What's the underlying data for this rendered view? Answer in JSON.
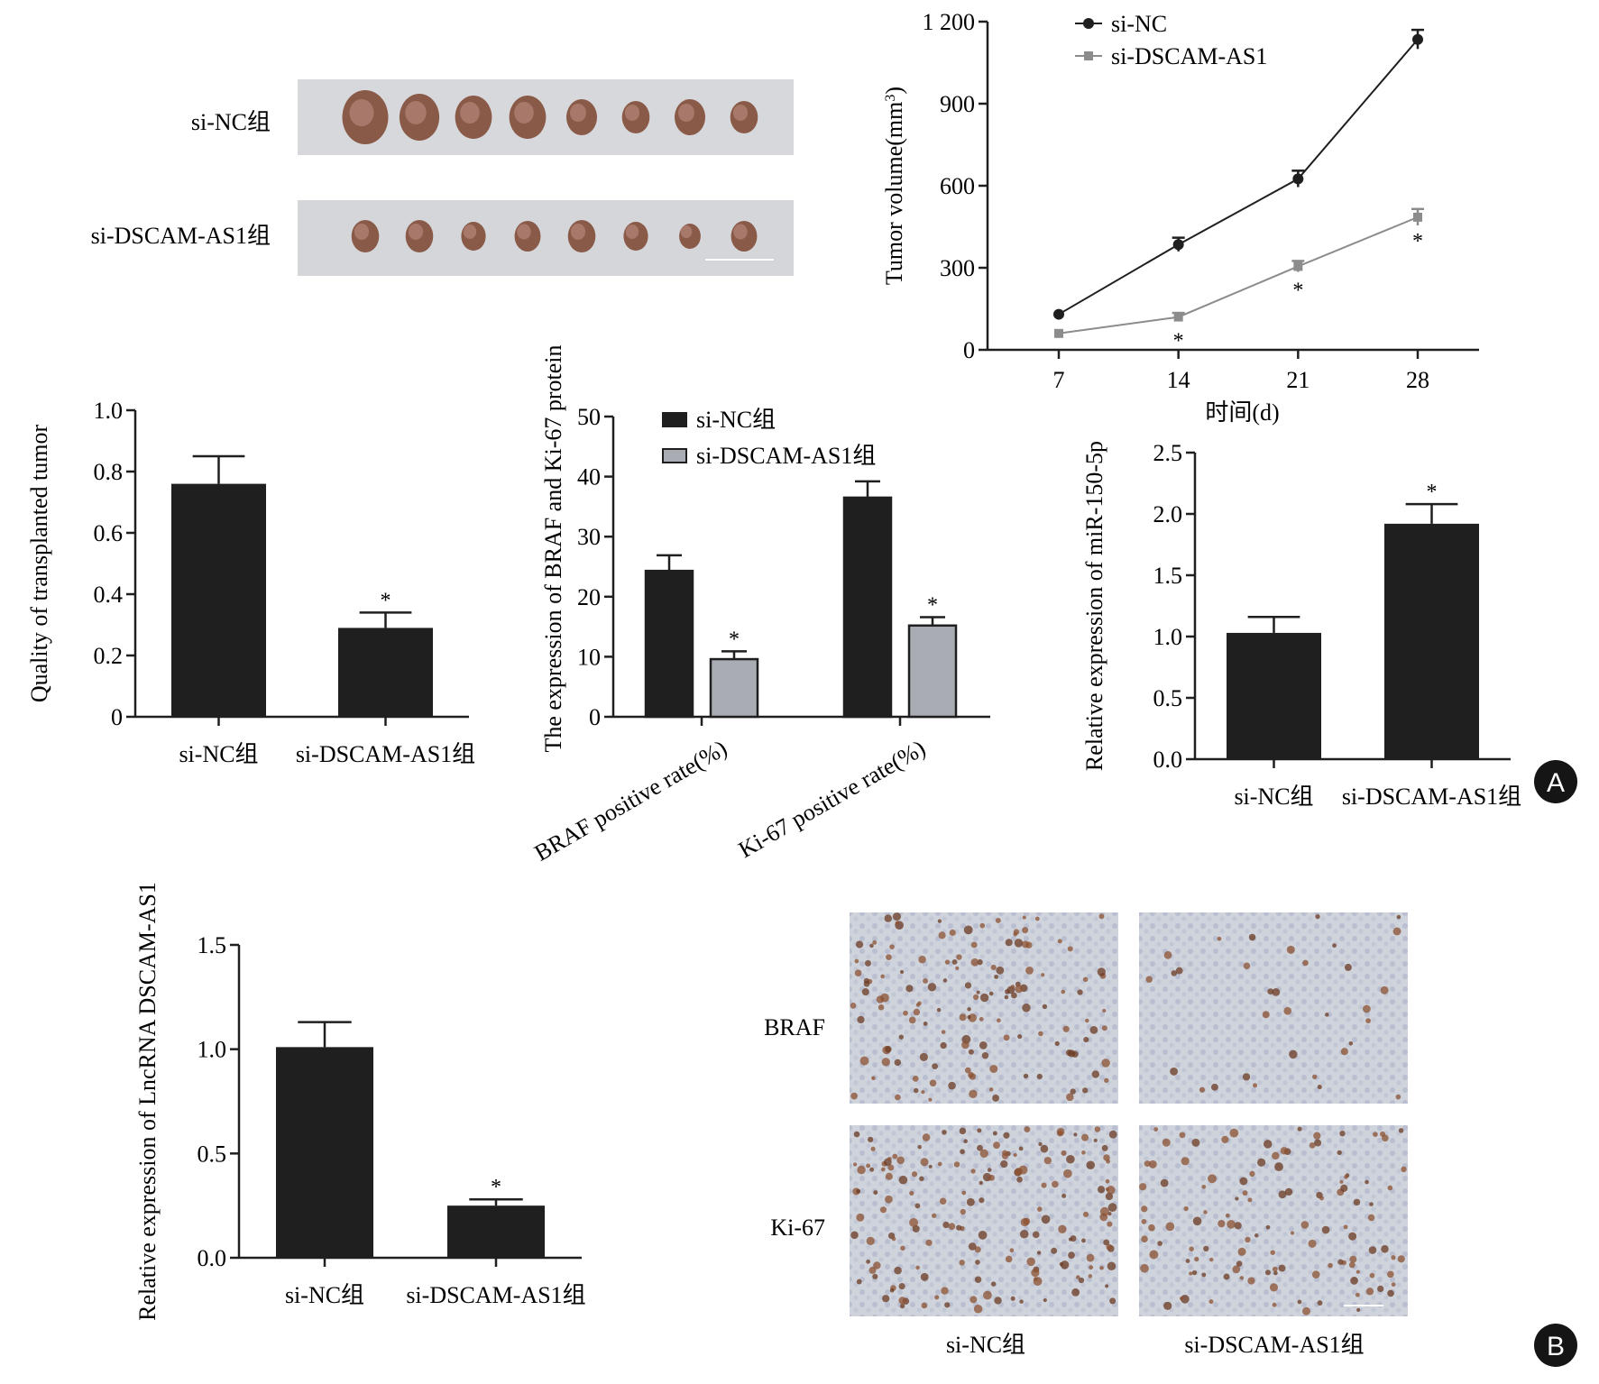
{
  "figure": {
    "panel_badges": [
      "A",
      "B"
    ],
    "tumor_photo": {
      "rows": [
        {
          "label": "si-NC组",
          "tumor_count": 8
        },
        {
          "label": "si-DSCAM-AS1组",
          "tumor_count": 8
        }
      ]
    },
    "ihc": {
      "row_labels": [
        "BRAF",
        "Ki-67"
      ],
      "column_labels": [
        "si-NC组",
        "si-DSCAM-AS1组"
      ],
      "stain_density": [
        [
          0.65,
          0.15
        ],
        [
          0.8,
          0.55
        ]
      ]
    },
    "colors": {
      "dark": "#1f1f1f",
      "gray": "#9a9a9a",
      "bar_gray": "#a9adb3",
      "badge": "#151515"
    }
  },
  "chart_data": [
    {
      "id": "tumor-volume",
      "type": "line",
      "title": "",
      "xlabel": "时间(d)",
      "ylabel": "Tumor volume(mm",
      "ylabel_sup": "3",
      "ylabel_tail": ")",
      "x": [
        7,
        14,
        21,
        28
      ],
      "ylim": [
        0,
        1200
      ],
      "yticks": [
        0,
        300,
        600,
        900,
        1200
      ],
      "ytick_labels": [
        "0",
        "300",
        "600",
        "900",
        "1 200"
      ],
      "legend": "top-left",
      "series": [
        {
          "name": "si-NC",
          "values": [
            130,
            385,
            625,
            1135
          ],
          "errors": [
            0,
            25,
            30,
            35
          ],
          "marker": "circle",
          "color": "#1f1f1f",
          "sig": [
            "",
            "",
            "",
            ""
          ]
        },
        {
          "name": "si-DSCAM-AS1",
          "values": [
            60,
            120,
            305,
            485
          ],
          "errors": [
            0,
            15,
            20,
            30
          ],
          "marker": "square",
          "color": "#8c8c8c",
          "sig": [
            "",
            "*",
            "*",
            "*"
          ]
        }
      ]
    },
    {
      "id": "tumor-quality",
      "type": "bar",
      "title": "",
      "ylabel": "Quality of transplanted tumor",
      "categories": [
        "si-NC组",
        "si-DSCAM-AS1组"
      ],
      "values": [
        0.76,
        0.29
      ],
      "errors": [
        0.09,
        0.05
      ],
      "sig": [
        "",
        "*"
      ],
      "ylim": [
        0,
        1.0
      ],
      "yticks": [
        0,
        0.2,
        0.4,
        0.6,
        0.8,
        1.0
      ],
      "ytick_labels": [
        "0",
        "0.2",
        "0.4",
        "0.6",
        "0.8",
        "1.0"
      ]
    },
    {
      "id": "braf-ki67",
      "type": "bar",
      "title": "",
      "ylabel": "The expression of BRAF and Ki-67 protein",
      "categories": [
        "BRAF positive rate(%)",
        "Ki-67 positive rate(%)"
      ],
      "ylim": [
        0,
        50
      ],
      "yticks": [
        0,
        10,
        20,
        30,
        40,
        50
      ],
      "ytick_labels": [
        "0",
        "10",
        "20",
        "30",
        "40",
        "50"
      ],
      "legend": "top-left",
      "series": [
        {
          "name": "si-NC组",
          "values": [
            24.3,
            36.5
          ],
          "errors": [
            2.6,
            2.7
          ],
          "sig": [
            "",
            ""
          ],
          "color": "#1f1f1f"
        },
        {
          "name": "si-DSCAM-AS1组",
          "values": [
            9.6,
            15.2
          ],
          "errors": [
            1.3,
            1.4
          ],
          "sig": [
            "*",
            "*"
          ],
          "color": "#a9adb3"
        }
      ]
    },
    {
      "id": "mir-150-5p",
      "type": "bar",
      "title": "",
      "ylabel": "Relative expression of miR-150-5p",
      "categories": [
        "si-NC组",
        "si-DSCAM-AS1组"
      ],
      "values": [
        1.03,
        1.92
      ],
      "errors": [
        0.13,
        0.16
      ],
      "sig": [
        "",
        "*"
      ],
      "ylim": [
        0,
        2.5
      ],
      "yticks": [
        0,
        0.5,
        1.0,
        1.5,
        2.0,
        2.5
      ],
      "ytick_labels": [
        "0.0",
        "0.5",
        "1.0",
        "1.5",
        "2.0",
        "2.5"
      ]
    },
    {
      "id": "lncrna-dscam-as1",
      "type": "bar",
      "title": "",
      "ylabel": "Relative expression of LncRNA DSCAM-AS1",
      "categories": [
        "si-NC组",
        "si-DSCAM-AS1组"
      ],
      "values": [
        1.01,
        0.25
      ],
      "errors": [
        0.12,
        0.03
      ],
      "sig": [
        "",
        "*"
      ],
      "ylim": [
        0,
        1.5
      ],
      "yticks": [
        0,
        0.5,
        1.0,
        1.5
      ],
      "ytick_labels": [
        "0.0",
        "0.5",
        "1.0",
        "1.5"
      ]
    }
  ]
}
